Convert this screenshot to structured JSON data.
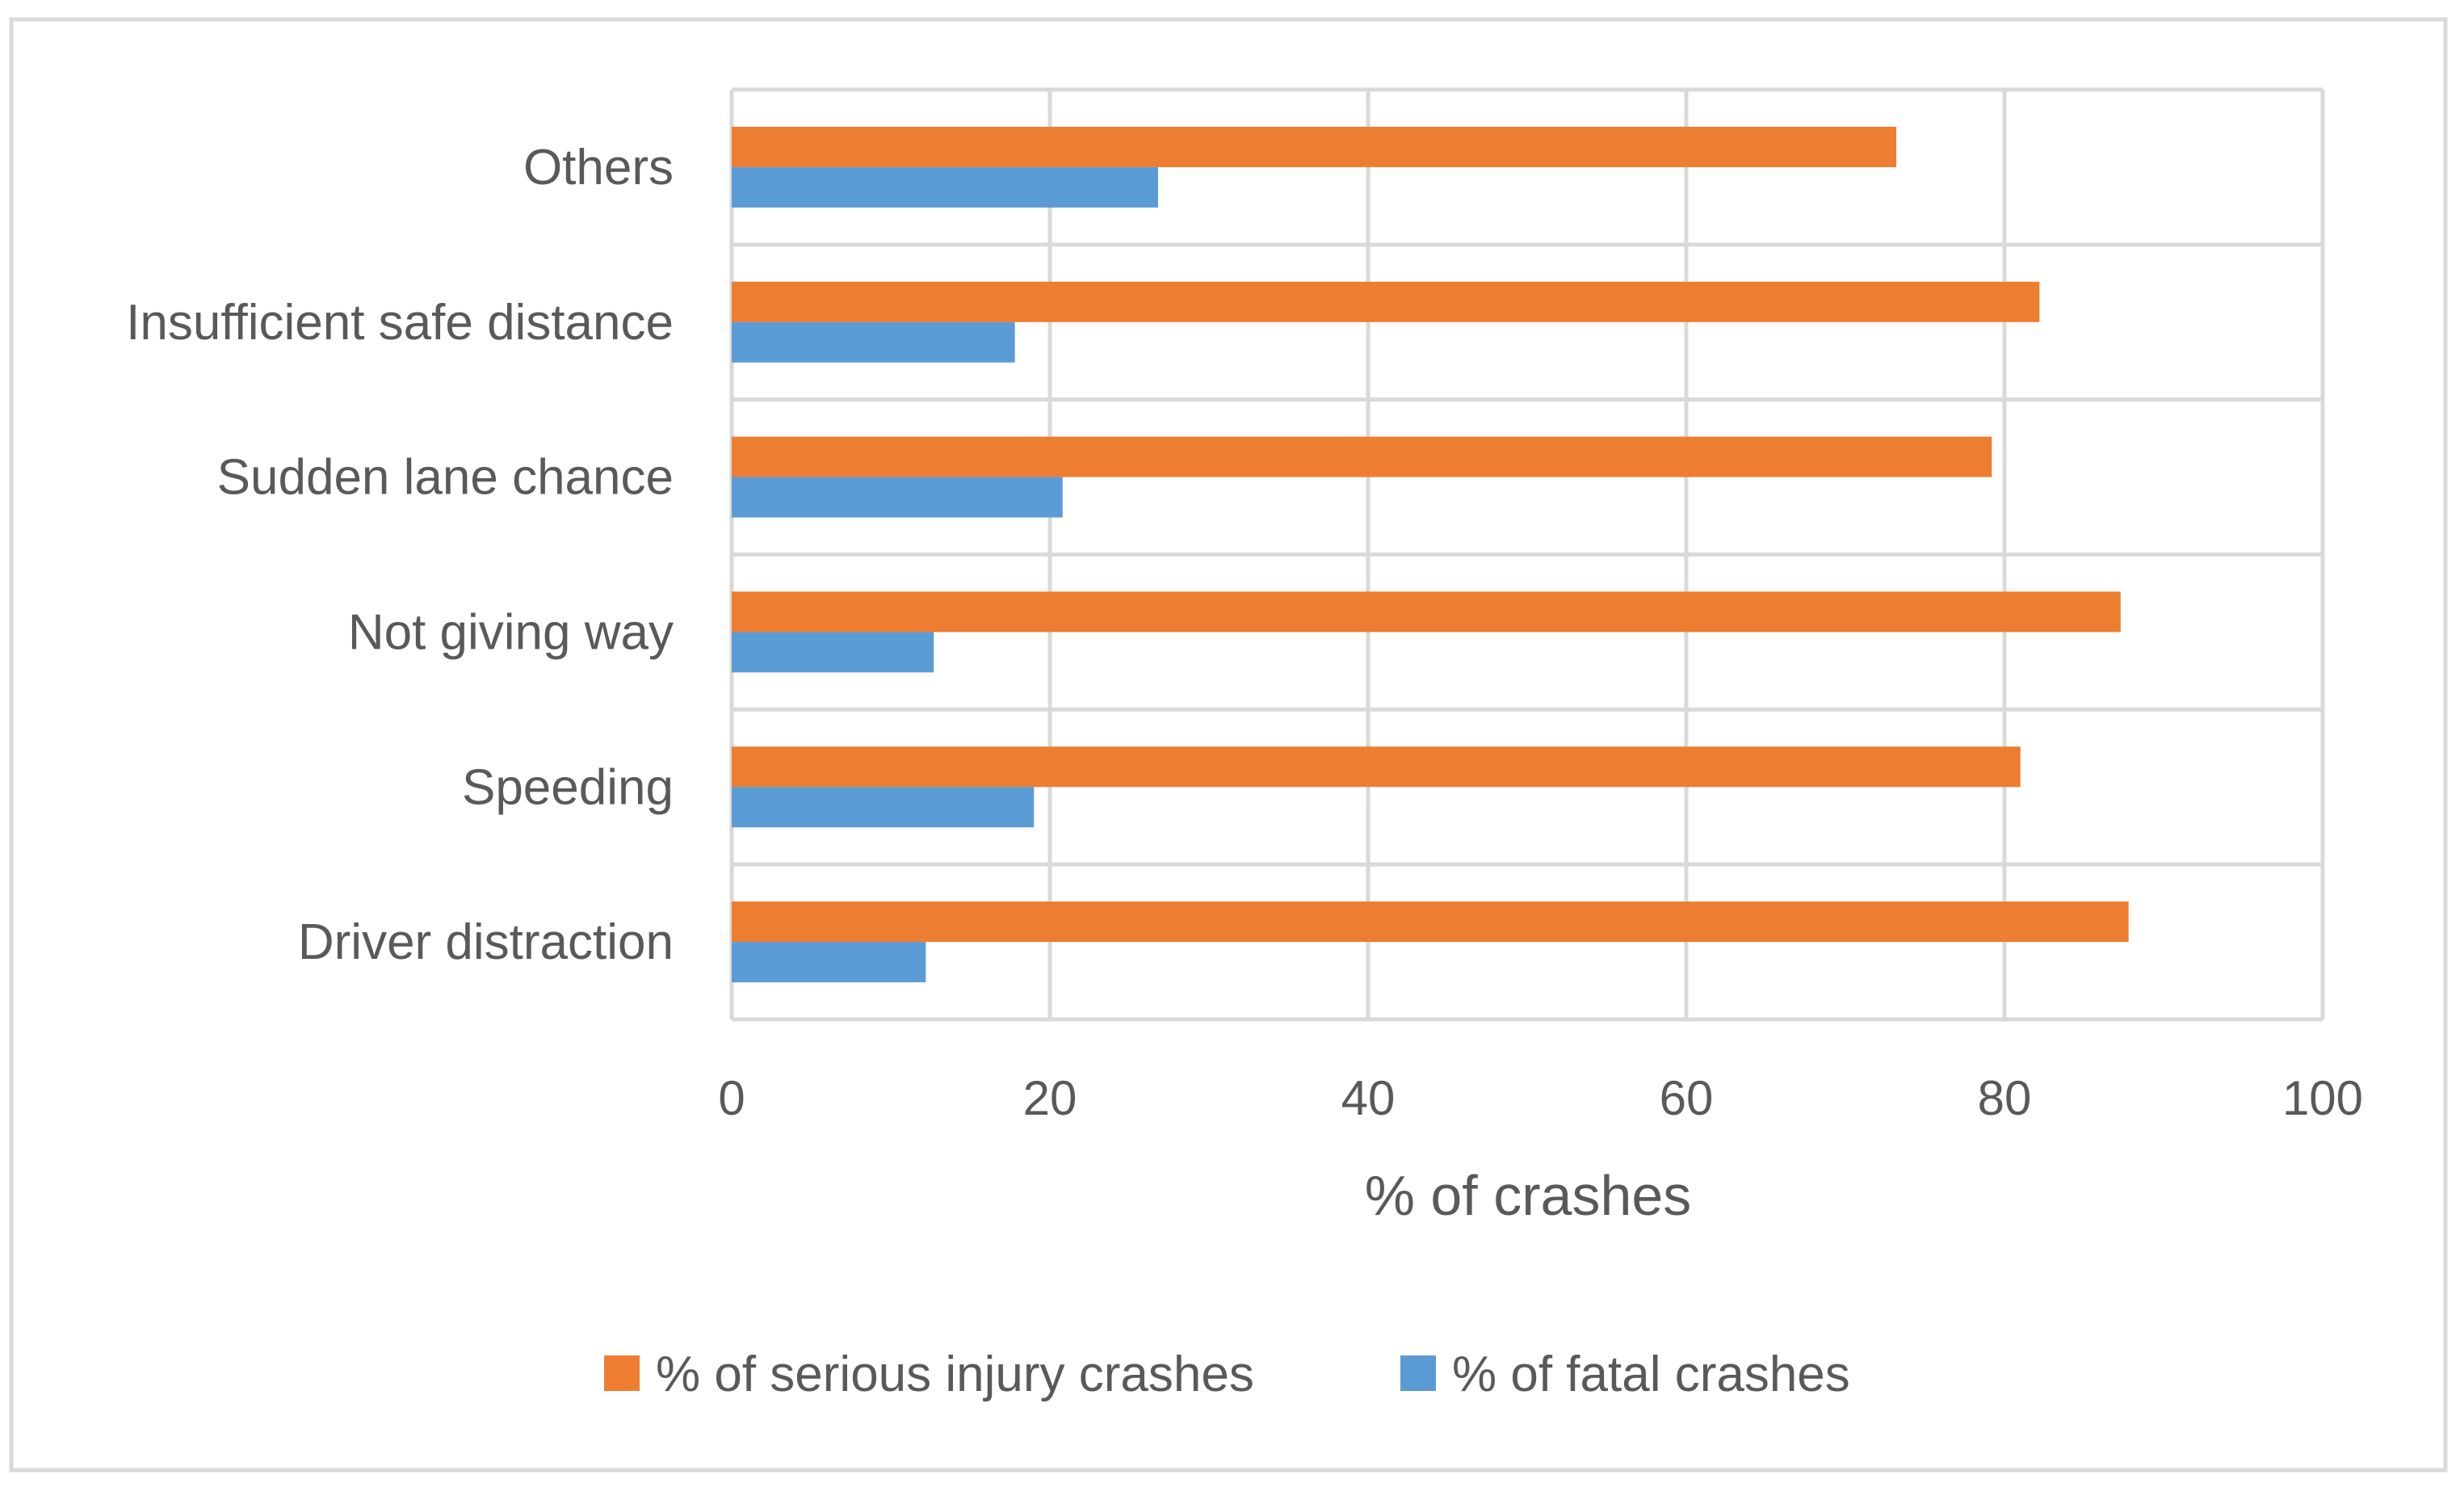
{
  "chart_data": {
    "type": "bar",
    "orientation": "horizontal",
    "categories": [
      "Driver distraction",
      "Speeding",
      "Not giving way",
      "Sudden lane chance",
      "Insufficient safe distance",
      "Others"
    ],
    "series": [
      {
        "name": "% of serious injury crashes",
        "color": "#ED7D31",
        "values": [
          87.8,
          81,
          87.3,
          79.2,
          82.2,
          73.2
        ]
      },
      {
        "name": "% of fatal crashes",
        "color": "#5B9BD5",
        "values": [
          12.2,
          19,
          12.7,
          20.8,
          17.8,
          26.8
        ]
      }
    ],
    "title": "",
    "xlabel": "% of crashes",
    "ylabel": "",
    "xlim": [
      0,
      100
    ],
    "xticks": [
      "0",
      "20",
      "40",
      "60",
      "80",
      "100"
    ],
    "grid": true,
    "legend": "bottom"
  }
}
